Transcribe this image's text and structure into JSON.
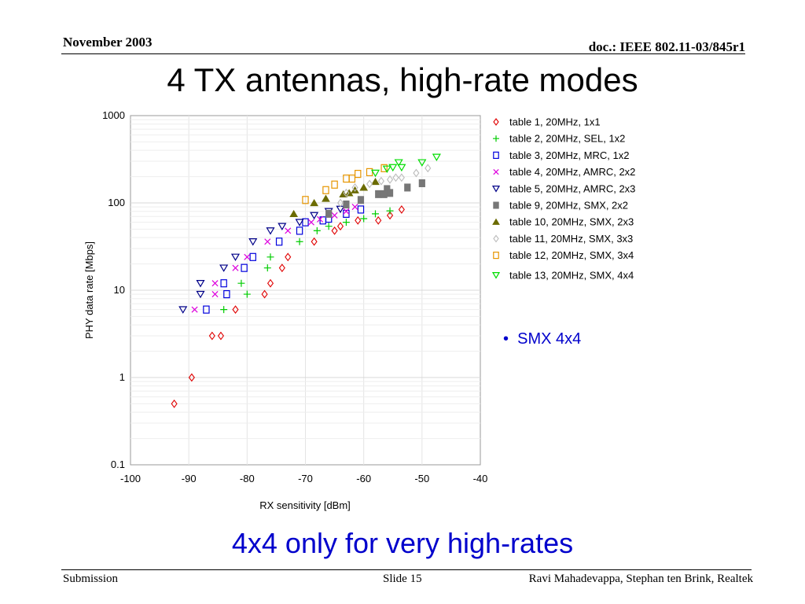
{
  "header": {
    "date": "November 2003",
    "doc": "doc.: IEEE 802.11-03/845r1"
  },
  "title": "4 TX antennas, high-rate modes",
  "bullet": "SMX 4x4",
  "subtitle": "4x4 only for very high-rates",
  "footer": {
    "left": "Submission",
    "center": "Slide 15",
    "right": "Ravi Mahadevappa, Stephan ten Brink, Realtek"
  },
  "chart_data": {
    "type": "scatter",
    "xlabel": "RX sensitivity [dBm]",
    "ylabel": "PHY data rate [Mbps]",
    "xlim": [
      -100,
      -40
    ],
    "ylim": [
      0.1,
      1000
    ],
    "yscale": "log",
    "x_ticks": [
      "-100",
      "-90",
      "-80",
      "-70",
      "-60",
      "-50",
      "-40"
    ],
    "y_ticks": [
      "0.1",
      "1",
      "10",
      "100",
      "1000"
    ],
    "grid": true,
    "legend": "right",
    "series": [
      {
        "name": "table 1, 20MHz, 1x1",
        "marker": "diamond",
        "color": "#e00000",
        "points": [
          [
            -92.5,
            0.5
          ],
          [
            -89.5,
            1
          ],
          [
            -86,
            3
          ],
          [
            -84.5,
            3
          ],
          [
            -82,
            6
          ],
          [
            -77,
            9
          ],
          [
            -74,
            18
          ],
          [
            -76,
            12
          ],
          [
            -73,
            24
          ],
          [
            -68.5,
            36
          ],
          [
            -65,
            48
          ],
          [
            -64,
            54
          ],
          [
            -61,
            63
          ],
          [
            -57.5,
            63
          ],
          [
            -55.5,
            72
          ],
          [
            -53.5,
            84
          ]
        ]
      },
      {
        "name": "table 2, 20MHz, SEL, 1x2",
        "marker": "plus",
        "color": "#00cc00",
        "points": [
          [
            -84,
            6
          ],
          [
            -80,
            9
          ],
          [
            -81,
            12
          ],
          [
            -76.5,
            18
          ],
          [
            -76,
            24
          ],
          [
            -71,
            36
          ],
          [
            -68,
            48
          ],
          [
            -66,
            54
          ],
          [
            -63,
            60
          ],
          [
            -60,
            66
          ],
          [
            -58,
            75
          ],
          [
            -55.5,
            81
          ]
        ]
      },
      {
        "name": "table 3, 20MHz, MRC, 1x2",
        "marker": "square",
        "color": "#0000dd",
        "points": [
          [
            -87,
            6
          ],
          [
            -83.5,
            9
          ],
          [
            -84,
            12
          ],
          [
            -80.5,
            18
          ],
          [
            -79,
            24
          ],
          [
            -74.5,
            36
          ],
          [
            -71,
            48
          ],
          [
            -70,
            60
          ],
          [
            -67,
            63
          ],
          [
            -66,
            66
          ],
          [
            -63,
            75
          ],
          [
            -60.5,
            84
          ]
        ]
      },
      {
        "name": "table 4, 20MHz, AMRC, 2x2",
        "marker": "cross",
        "color": "#dd00dd",
        "points": [
          [
            -89,
            6
          ],
          [
            -85.5,
            9
          ],
          [
            -85.5,
            12
          ],
          [
            -82,
            18
          ],
          [
            -80,
            24
          ],
          [
            -76.5,
            36
          ],
          [
            -73,
            48
          ],
          [
            -69,
            60
          ],
          [
            -67.5,
            65
          ],
          [
            -65,
            72
          ],
          [
            -63,
            80
          ],
          [
            -61.5,
            90
          ]
        ]
      },
      {
        "name": "table 5, 20MHz, AMRC, 2x3",
        "marker": "tridown",
        "color": "#000088",
        "points": [
          [
            -91,
            6
          ],
          [
            -88,
            9
          ],
          [
            -88,
            12
          ],
          [
            -84,
            18
          ],
          [
            -82,
            24
          ],
          [
            -79,
            36
          ],
          [
            -76,
            48
          ],
          [
            -74,
            54
          ],
          [
            -71,
            60
          ],
          [
            -68.5,
            72
          ],
          [
            -66,
            80
          ],
          [
            -64,
            85
          ]
        ]
      },
      {
        "name": "table 9, 20MHz, SMX, 2x2",
        "marker": "sqfill",
        "color": "#777777",
        "points": [
          [
            -66,
            75
          ],
          [
            -63,
            96
          ],
          [
            -60.5,
            108
          ],
          [
            -57.5,
            126
          ],
          [
            -56.5,
            126
          ],
          [
            -56,
            144
          ],
          [
            -55.5,
            130
          ],
          [
            -52.5,
            150
          ],
          [
            -50,
            168
          ]
        ]
      },
      {
        "name": "table 10, 20MHz, SMX, 2x3",
        "marker": "trifill",
        "color": "#6b6b00",
        "points": [
          [
            -72,
            75
          ],
          [
            -68.5,
            100
          ],
          [
            -66.5,
            112
          ],
          [
            -63.5,
            126
          ],
          [
            -62.5,
            130
          ],
          [
            -61.5,
            140
          ],
          [
            -60,
            150
          ],
          [
            -58,
            175
          ]
        ]
      },
      {
        "name": "table 11, 20MHz, SMX, 3x3",
        "marker": "diamond",
        "color": "#bbbbbb",
        "points": [
          [
            -64,
            100
          ],
          [
            -63,
            130
          ],
          [
            -61.5,
            150
          ],
          [
            -59,
            165
          ],
          [
            -57,
            178
          ],
          [
            -55.5,
            185
          ],
          [
            -54.5,
            195
          ],
          [
            -53.5,
            195
          ],
          [
            -51,
            220
          ],
          [
            -49,
            250
          ]
        ]
      },
      {
        "name": "table 12, 20MHz, SMX, 3x4",
        "marker": "square",
        "color": "#e69500",
        "points": [
          [
            -70,
            108
          ],
          [
            -66.5,
            140
          ],
          [
            -65,
            162
          ],
          [
            -63,
            190
          ],
          [
            -62,
            190
          ],
          [
            -61,
            215
          ],
          [
            -59,
            225
          ],
          [
            -56.5,
            250
          ]
        ]
      },
      {
        "name": "table 13, 20MHz, SMX, 4x4",
        "marker": "tridown",
        "color": "#00dd00",
        "points": [
          [
            -58,
            220
          ],
          [
            -56,
            245
          ],
          [
            -55,
            255
          ],
          [
            -54,
            290
          ],
          [
            -53.5,
            255
          ],
          [
            -50,
            290
          ],
          [
            -47.5,
            335
          ]
        ]
      }
    ]
  }
}
